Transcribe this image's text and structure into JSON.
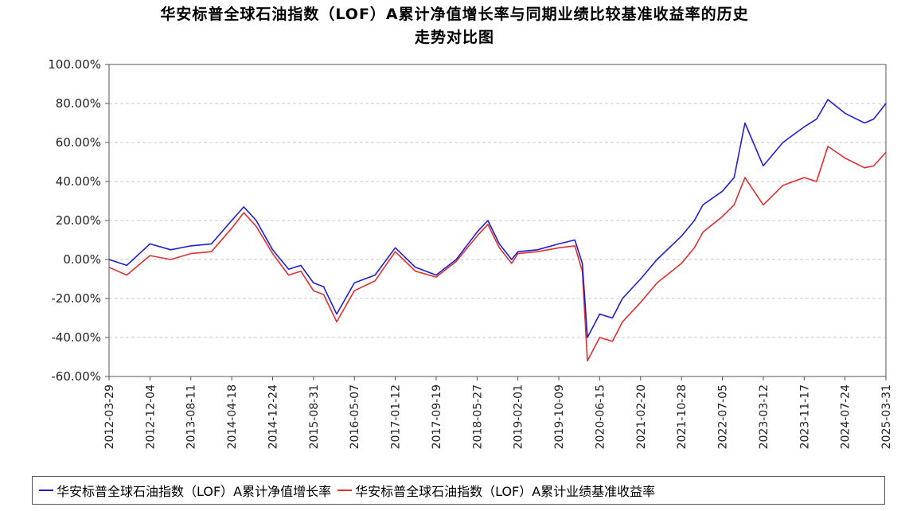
{
  "title_line1": "华安标普全球石油指数（LOF）A累计净值增长率与同期业绩比较基准收益率的历史",
  "title_line2": "走势对比图",
  "chart_data": {
    "type": "line",
    "ylim": [
      -60,
      100
    ],
    "yticks": [
      100,
      80,
      60,
      40,
      20,
      0,
      -20,
      -40,
      -60
    ],
    "ytick_labels": [
      "100.00%",
      "80.00%",
      "60.00%",
      "40.00%",
      "20.00%",
      "0.00%",
      "-20.00%",
      "-40.00%",
      "-60.00%"
    ],
    "xtick_labels": [
      "2012-03-29",
      "2012-12-04",
      "2013-08-11",
      "2014-04-18",
      "2014-12-24",
      "2015-08-31",
      "2016-05-07",
      "2017-01-12",
      "2017-09-19",
      "2018-05-27",
      "2019-02-01",
      "2019-10-09",
      "2020-06-15",
      "2021-02-20",
      "2021-10-28",
      "2022-07-05",
      "2023-03-12",
      "2023-11-17",
      "2024-07-24",
      "2025-03-31"
    ],
    "grid": true,
    "legend_position": "bottom",
    "x": [
      "2012-03-29",
      "2012-07-15",
      "2012-12-04",
      "2013-04-10",
      "2013-08-11",
      "2013-12-15",
      "2014-04-18",
      "2014-07-01",
      "2014-09-15",
      "2014-12-24",
      "2015-04-01",
      "2015-06-15",
      "2015-08-31",
      "2015-11-01",
      "2016-01-20",
      "2016-05-07",
      "2016-09-10",
      "2017-01-12",
      "2017-05-15",
      "2017-09-19",
      "2018-01-20",
      "2018-05-27",
      "2018-08-01",
      "2018-10-10",
      "2018-12-24",
      "2019-02-01",
      "2019-06-01",
      "2019-10-09",
      "2020-01-15",
      "2020-03-01",
      "2020-04-01",
      "2020-06-15",
      "2020-09-01",
      "2020-11-01",
      "2021-02-20",
      "2021-06-01",
      "2021-10-28",
      "2022-01-15",
      "2022-03-08",
      "2022-07-05",
      "2022-09-15",
      "2022-11-20",
      "2023-03-12",
      "2023-07-10",
      "2023-11-17",
      "2024-02-01",
      "2024-04-10",
      "2024-07-24",
      "2024-11-20",
      "2025-01-15",
      "2025-03-31"
    ],
    "series": [
      {
        "name": "华安标普全球石油指数（LOF）A累计净值增长率",
        "color": "#1f1fd0",
        "values": [
          0,
          -3,
          8,
          5,
          7,
          8,
          20,
          27,
          20,
          5,
          -5,
          -3,
          -12,
          -14,
          -28,
          -12,
          -8,
          6,
          -4,
          -8,
          0,
          14,
          20,
          8,
          0,
          4,
          5,
          8,
          10,
          -2,
          -40,
          -28,
          -30,
          -20,
          -10,
          0,
          12,
          20,
          28,
          35,
          42,
          70,
          48,
          60,
          68,
          72,
          82,
          75,
          70,
          72,
          80
        ]
      },
      {
        "name": "华安标普全球石油指数（LOF）A累计业绩基准收益率",
        "color": "#e03030",
        "values": [
          -4,
          -8,
          2,
          0,
          3,
          4,
          16,
          24,
          17,
          3,
          -8,
          -6,
          -16,
          -18,
          -32,
          -16,
          -11,
          4,
          -6,
          -9,
          -1,
          12,
          18,
          6,
          -2,
          3,
          4,
          6,
          7,
          -6,
          -52,
          -40,
          -42,
          -32,
          -22,
          -12,
          -2,
          6,
          14,
          22,
          28,
          42,
          28,
          38,
          42,
          40,
          58,
          52,
          47,
          48,
          55
        ]
      }
    ]
  }
}
